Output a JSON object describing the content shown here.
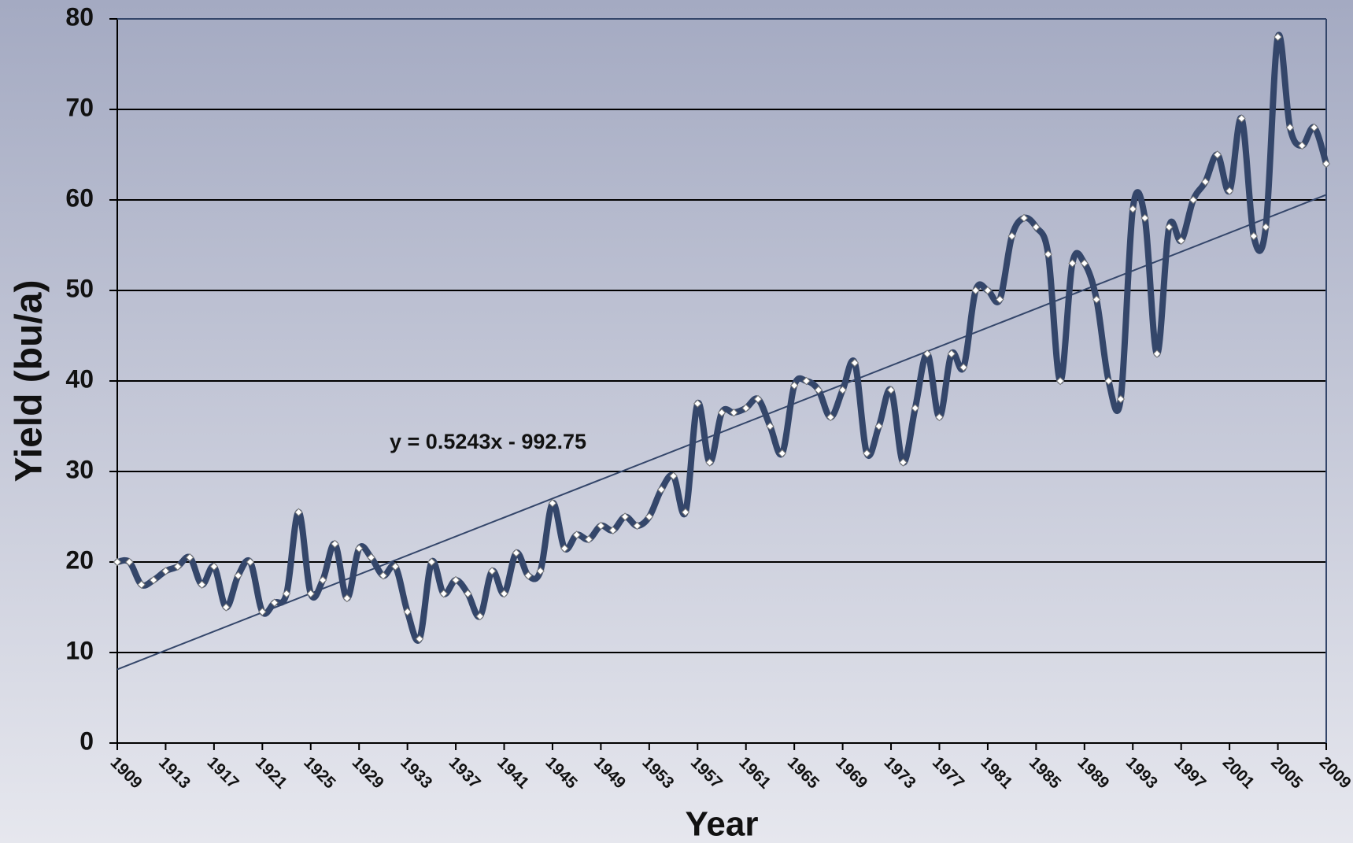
{
  "chart_data": {
    "type": "line",
    "x_label": "Year",
    "y_label": "Yield (bu/a)",
    "x": [
      1909,
      1910,
      1911,
      1912,
      1913,
      1914,
      1915,
      1916,
      1917,
      1918,
      1919,
      1920,
      1921,
      1922,
      1923,
      1924,
      1925,
      1926,
      1927,
      1928,
      1929,
      1930,
      1931,
      1932,
      1933,
      1934,
      1935,
      1936,
      1937,
      1938,
      1939,
      1940,
      1941,
      1942,
      1943,
      1944,
      1945,
      1946,
      1947,
      1948,
      1949,
      1950,
      1951,
      1952,
      1953,
      1954,
      1955,
      1956,
      1957,
      1958,
      1959,
      1960,
      1961,
      1962,
      1963,
      1964,
      1965,
      1966,
      1967,
      1968,
      1969,
      1970,
      1971,
      1972,
      1973,
      1974,
      1975,
      1976,
      1977,
      1978,
      1979,
      1980,
      1981,
      1982,
      1983,
      1984,
      1985,
      1986,
      1987,
      1988,
      1989,
      1990,
      1991,
      1992,
      1993,
      1994,
      1995,
      1996,
      1997,
      1998,
      1999,
      2000,
      2001,
      2002,
      2003,
      2004,
      2005,
      2006,
      2007,
      2008,
      2009
    ],
    "series": [
      {
        "color": "#34466a",
        "marker_color": "#ffffff",
        "values": [
          20,
          20,
          17.5,
          18,
          19,
          19.5,
          20.5,
          17.5,
          19.5,
          15,
          18.5,
          20,
          14.5,
          15.5,
          16.5,
          25.5,
          16.5,
          18,
          22,
          16,
          21.5,
          20.5,
          18.5,
          19.5,
          14.5,
          11.5,
          20,
          16.5,
          18,
          16.5,
          14,
          19,
          16.5,
          21,
          18.5,
          19,
          26.5,
          21.5,
          23,
          22.5,
          24,
          23.5,
          25,
          24,
          25,
          28,
          29.5,
          25.5,
          37.5,
          31,
          36.5,
          36.5,
          37,
          38,
          35,
          32,
          39.5,
          40,
          39,
          36,
          39,
          42,
          32,
          35,
          39,
          31,
          37,
          43,
          36,
          43,
          41.5,
          50,
          50,
          49,
          56,
          58,
          57,
          54,
          40,
          53,
          53,
          49,
          40,
          38,
          59,
          58,
          43,
          57,
          55.5,
          60,
          62,
          65,
          61,
          69,
          56,
          57,
          78,
          68,
          66,
          68,
          64
        ]
      }
    ],
    "trendline": {
      "label": "y = 0.5243x - 992.75",
      "slope": 0.5243,
      "intercept": -992.75,
      "color": "#34466a"
    },
    "xlim": [
      1909,
      2009
    ],
    "xticks": [
      1909,
      1913,
      1917,
      1921,
      1925,
      1929,
      1933,
      1937,
      1941,
      1945,
      1949,
      1953,
      1957,
      1961,
      1965,
      1969,
      1973,
      1977,
      1981,
      1985,
      1989,
      1993,
      1997,
      2001,
      2005,
      2009
    ],
    "ylim": [
      0,
      80
    ],
    "yticks": [
      0,
      10,
      20,
      30,
      40,
      50,
      60,
      70,
      80
    ],
    "grid": true
  }
}
